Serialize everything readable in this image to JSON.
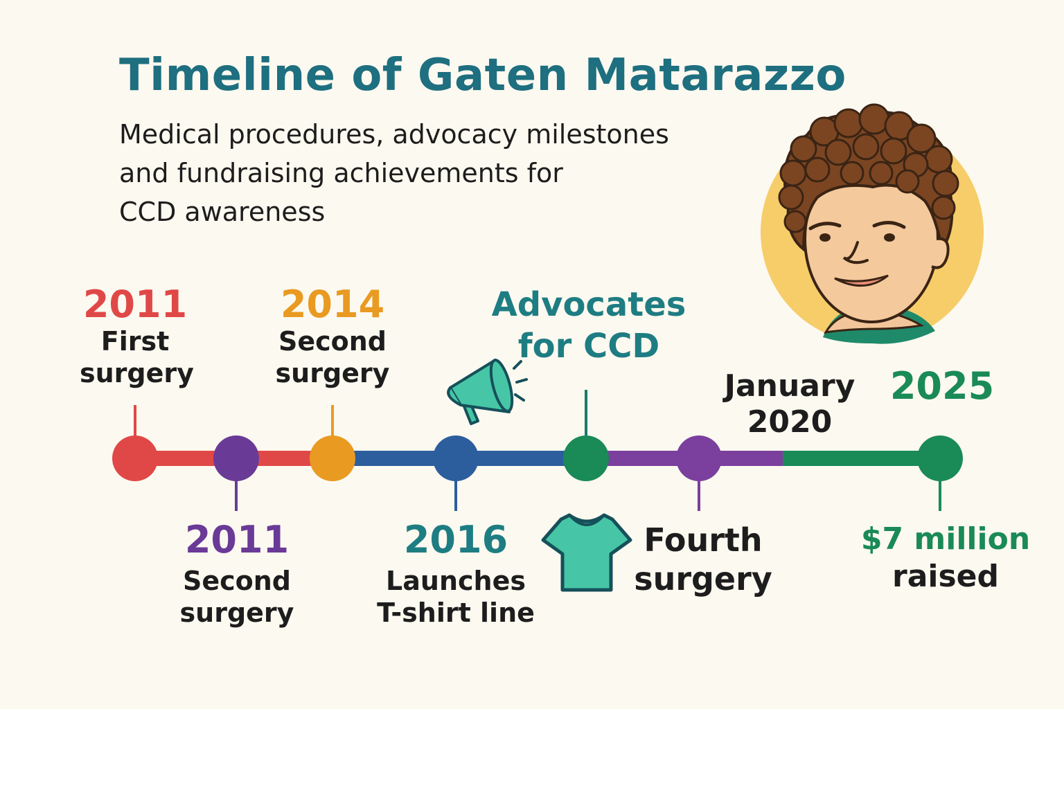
{
  "title": "Timeline of Gaten Matarazzo",
  "subtitle_lines": [
    "Medical procedures, advocacy milestones",
    "and fundraising achievements for",
    "CCD awareness"
  ],
  "colors": {
    "title": "#1e6f7f",
    "red": "#e04848",
    "purple": "#6a3a97",
    "orange": "#e99a21",
    "blue": "#2c5e9e",
    "teal": "#1e7d82",
    "green": "#1a8a57",
    "dark": "#1d1d1d",
    "shirt": "#46c6a6",
    "portrait_bg": "#f7cd6a"
  },
  "events": {
    "e1": {
      "year": "2011",
      "desc1": "First",
      "desc2": "surgery"
    },
    "e2": {
      "year": "2011",
      "desc1": "Second",
      "desc2": "surgery"
    },
    "e3": {
      "year": "2014",
      "desc1": "Second",
      "desc2": "surgery"
    },
    "e4": {
      "year": "2016",
      "desc1": "Launches",
      "desc2": "T-shirt line"
    },
    "e5": {
      "year": "",
      "desc1": "Advocates",
      "desc2": "for CCD"
    },
    "e6": {
      "year": "",
      "desc1": "Fourth",
      "desc2": "surgery"
    },
    "e7": {
      "year1": "January",
      "year2": "2020"
    },
    "e8": {
      "year": "2025",
      "desc1": "$7 million",
      "desc2": "raised"
    }
  },
  "icons": [
    "megaphone-icon",
    "t-shirt-icon",
    "portrait-illustration"
  ]
}
